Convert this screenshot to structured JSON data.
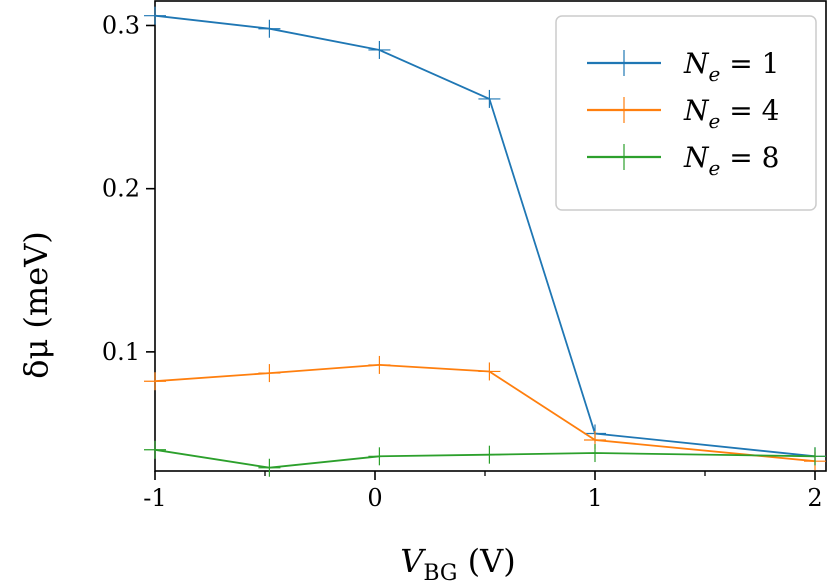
{
  "chart_data": {
    "type": "line",
    "xlabel": {
      "main": "V",
      "sub": "BG",
      "unit": " (V)"
    },
    "ylabel": {
      "symbol": "δμ",
      "unit": " (meV)"
    },
    "xlim": [
      -1.0,
      2.05
    ],
    "ylim": [
      0.027,
      0.315
    ],
    "x_ticks": [
      -1,
      0,
      1,
      2
    ],
    "x_tick_labels": [
      "-1",
      "0",
      "1",
      "2"
    ],
    "x_minor_ticks": [
      -0.5,
      0.5,
      1.5
    ],
    "y_ticks": [
      0.1,
      0.2,
      0.3
    ],
    "y_tick_labels": [
      "0.1",
      "0.2",
      "0.3"
    ],
    "grid": false,
    "legend_placement": "top-right",
    "series": [
      {
        "name": "N_e = 1",
        "label": {
          "var": "N",
          "sub": "e",
          "rest": " = 1"
        },
        "color": "#1f77b4",
        "x": [
          -1.0,
          -0.48,
          0.02,
          0.52,
          1.0,
          2.0
        ],
        "y": [
          0.306,
          0.298,
          0.285,
          0.255,
          0.05,
          0.036
        ]
      },
      {
        "name": "N_e = 4",
        "label": {
          "var": "N",
          "sub": "e",
          "rest": " = 4"
        },
        "color": "#ff7f0e",
        "x": [
          -1.0,
          -0.48,
          0.02,
          0.52,
          1.0,
          2.0
        ],
        "y": [
          0.082,
          0.087,
          0.092,
          0.088,
          0.046,
          0.033
        ]
      },
      {
        "name": "N_e = 8",
        "label": {
          "var": "N",
          "sub": "e",
          "rest": " = 8"
        },
        "color": "#2ca02c",
        "x": [
          -1.0,
          -0.48,
          0.02,
          0.52,
          1.0,
          2.0
        ],
        "y": [
          0.04,
          0.029,
          0.036,
          0.037,
          0.038,
          0.036
        ]
      }
    ]
  }
}
